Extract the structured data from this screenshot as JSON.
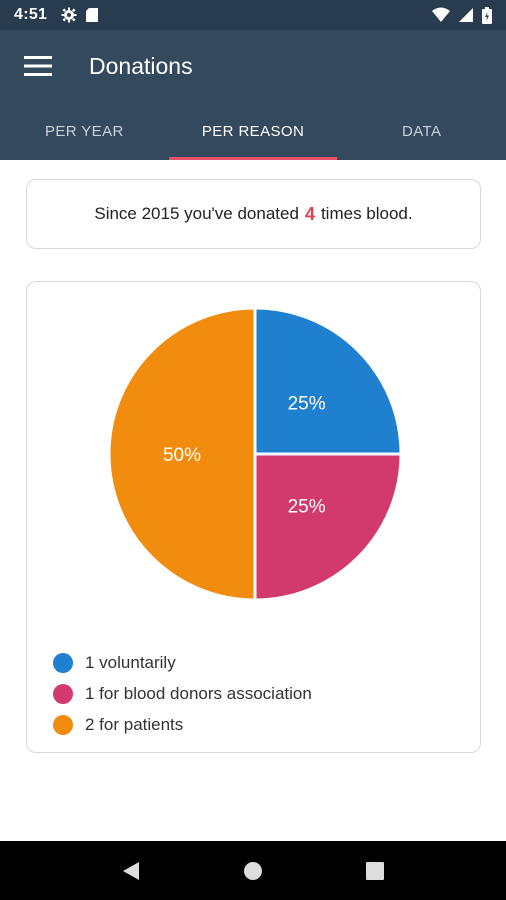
{
  "status_bar": {
    "time": "4:51",
    "icons": [
      "settings-icon",
      "sd-card-icon",
      "wifi-icon",
      "signal-icon",
      "battery-icon"
    ]
  },
  "app_bar": {
    "title": "Donations",
    "menu_icon": "hamburger-menu-icon"
  },
  "tabs": [
    {
      "label": "PER YEAR",
      "active": false
    },
    {
      "label": "PER REASON",
      "active": true
    },
    {
      "label": "DATA",
      "active": false
    }
  ],
  "summary": {
    "prefix": "Since 2015 you've donated",
    "count": "4",
    "suffix": "times blood."
  },
  "colors": {
    "header": "#34495e",
    "status": "#283b4f",
    "tab_indicator": "#e8506b",
    "count": "#e0434e"
  },
  "chart_data": {
    "type": "pie",
    "title": "",
    "slices": [
      {
        "label": "1 voluntarily",
        "value": 25,
        "display": "25%",
        "color": "#1f80d0"
      },
      {
        "label": "1 for blood donors association",
        "value": 25,
        "display": "25%",
        "color": "#d23a6e"
      },
      {
        "label": "2 for patients",
        "value": 50,
        "display": "50%",
        "color": "#f28c0f"
      }
    ],
    "legend_position": "bottom-left"
  },
  "nav_bar": {
    "icons": [
      "back-icon",
      "home-icon",
      "recents-icon"
    ]
  }
}
